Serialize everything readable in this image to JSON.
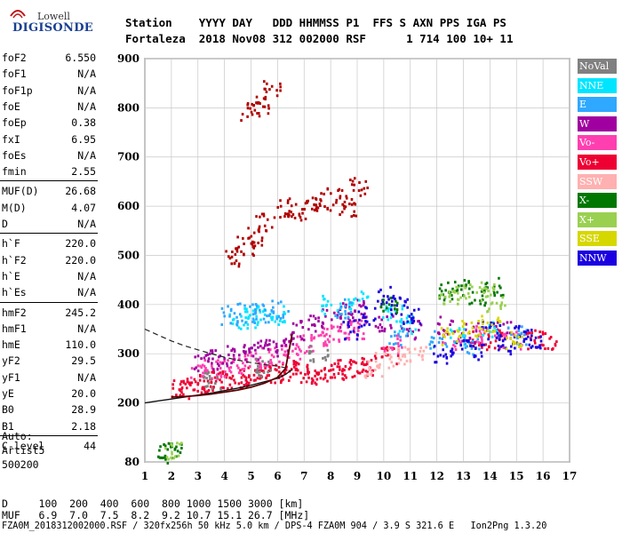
{
  "logo": {
    "line1": "Lowell",
    "line2": "DIGISONDE"
  },
  "header": {
    "row1": "Station    YYYY DAY   DDD HHMMSS P1  FFS S AXN PPS IGA PS",
    "row2": "Fortaleza  2018 Nov08 312 002000 RSF      1 714 100 10+ 11"
  },
  "params": [
    {
      "name": "foF2",
      "value": "6.550"
    },
    {
      "name": "foF1",
      "value": "N/A"
    },
    {
      "name": "foF1p",
      "value": "N/A"
    },
    {
      "name": "foE",
      "value": "N/A"
    },
    {
      "name": "foEp",
      "value": "0.38"
    },
    {
      "name": "fxI",
      "value": "6.95"
    },
    {
      "name": "foEs",
      "value": "N/A"
    },
    {
      "name": "fmin",
      "value": "2.55"
    },
    {
      "name": "MUF(D)",
      "value": "26.68"
    },
    {
      "name": "M(D)",
      "value": "4.07"
    },
    {
      "name": "D",
      "value": "N/A"
    },
    {
      "name": "h`F",
      "value": "220.0"
    },
    {
      "name": "h`F2",
      "value": "220.0"
    },
    {
      "name": "h`E",
      "value": "N/A"
    },
    {
      "name": "h`Es",
      "value": "N/A"
    },
    {
      "name": "hmF2",
      "value": "245.2"
    },
    {
      "name": "hmF1",
      "value": "N/A"
    },
    {
      "name": "hmE",
      "value": "110.0"
    },
    {
      "name": "yF2",
      "value": "29.5"
    },
    {
      "name": "yF1",
      "value": "N/A"
    },
    {
      "name": "yE",
      "value": "20.0"
    },
    {
      "name": "B0",
      "value": "28.9"
    },
    {
      "name": "B1",
      "value": "2.18"
    },
    {
      "name": "C-level",
      "value": "44"
    }
  ],
  "auto": {
    "line1": "Auto:",
    "line2": "Artist5",
    "line3": "500200"
  },
  "legend": [
    {
      "label": "NoVal",
      "color": "#808080"
    },
    {
      "label": "NNE",
      "color": "#00e5ff"
    },
    {
      "label": "E",
      "color": "#2fa8ff"
    },
    {
      "label": "W",
      "color": "#a000a0"
    },
    {
      "label": "Vo-",
      "color": "#ff3fb0"
    },
    {
      "label": "Vo+",
      "color": "#ee0033"
    },
    {
      "label": "SSW",
      "color": "#ffb0b0"
    },
    {
      "label": "X-",
      "color": "#007700"
    },
    {
      "label": "X+",
      "color": "#99d050"
    },
    {
      "label": "SSE",
      "color": "#d7d700"
    },
    {
      "label": "NNW",
      "color": "#1a00e0"
    }
  ],
  "footer": {
    "row1": "D     100  200  400  600  800 1000 1500 3000 [km]",
    "row2": "MUF   6.9  7.0  7.5  8.2  9.2 10.7 15.1 26.7 [MHz]",
    "row3": "FZA0M_2018312002000.RSF / 320fx256h 50 kHz 5.0 km / DPS-4 FZA0M 904 / 3.9 S 321.6 E   Ion2Png 1.3.20"
  },
  "chart_data": {
    "type": "scatter",
    "x_ticks": [
      1,
      2,
      3,
      4,
      5,
      6,
      7,
      8,
      9,
      10,
      11,
      12,
      13,
      14,
      15,
      16,
      17
    ],
    "y_ticks": [
      80,
      200,
      300,
      400,
      500,
      600,
      700,
      800,
      900
    ],
    "xlim": [
      1,
      17
    ],
    "ylim": [
      80,
      900
    ],
    "grid": true,
    "series": [
      {
        "name": "Vo+",
        "color": "#ee0033",
        "points": [
          [
            2.3,
            230
          ],
          [
            2.6,
            235
          ],
          [
            3.0,
            240
          ],
          [
            3.4,
            243
          ],
          [
            3.8,
            246
          ],
          [
            4.2,
            249
          ],
          [
            4.6,
            252
          ],
          [
            5.0,
            255
          ],
          [
            5.4,
            258
          ],
          [
            5.8,
            262
          ],
          [
            6.2,
            265
          ],
          [
            6.6,
            268
          ],
          [
            7.0,
            262
          ],
          [
            7.4,
            258
          ],
          [
            7.8,
            262
          ],
          [
            8.2,
            266
          ],
          [
            8.6,
            270
          ],
          [
            9.0,
            274
          ],
          [
            9.3,
            278
          ],
          [
            10.2,
            300
          ],
          [
            13.5,
            330
          ],
          [
            14.2,
            330
          ],
          [
            15.6,
            330
          ],
          [
            16.2,
            330
          ]
        ]
      },
      {
        "name": "Vo-",
        "color": "#ff3fb0",
        "points": [
          [
            3.0,
            265
          ],
          [
            3.5,
            270
          ],
          [
            4.0,
            275
          ],
          [
            4.5,
            280
          ],
          [
            5.0,
            288
          ],
          [
            5.5,
            295
          ],
          [
            6.0,
            300
          ],
          [
            6.5,
            310
          ],
          [
            7.0,
            320
          ],
          [
            7.5,
            330
          ],
          [
            8.0,
            340
          ],
          [
            8.5,
            345
          ],
          [
            9.0,
            350
          ],
          [
            10.3,
            320
          ],
          [
            12.5,
            330
          ],
          [
            13.8,
            340
          ],
          [
            14.8,
            330
          ]
        ]
      },
      {
        "name": "W",
        "color": "#a000a0",
        "points": [
          [
            3.2,
            285
          ],
          [
            3.8,
            290
          ],
          [
            4.4,
            300
          ],
          [
            5.0,
            310
          ],
          [
            5.6,
            315
          ],
          [
            6.2,
            320
          ],
          [
            6.8,
            350
          ],
          [
            7.4,
            360
          ],
          [
            8.0,
            375
          ],
          [
            8.6,
            385
          ],
          [
            9.0,
            395
          ],
          [
            10.0,
            360
          ],
          [
            11.0,
            350
          ],
          [
            12.3,
            360
          ],
          [
            13.2,
            345
          ],
          [
            14.5,
            350
          ]
        ]
      },
      {
        "name": "NNE",
        "color": "#00e5ff",
        "points": [
          [
            4.5,
            370
          ],
          [
            5.0,
            375
          ],
          [
            5.5,
            380
          ],
          [
            6.0,
            380
          ],
          [
            8.0,
            400
          ],
          [
            9.0,
            410
          ],
          [
            10.3,
            380
          ],
          [
            10.8,
            360
          ],
          [
            12.8,
            340
          ],
          [
            14.0,
            350
          ]
        ]
      },
      {
        "name": "E",
        "color": "#2fa8ff",
        "points": [
          [
            4.2,
            380
          ],
          [
            4.8,
            385
          ],
          [
            5.4,
            385
          ],
          [
            6.0,
            390
          ],
          [
            8.5,
            395
          ],
          [
            10.5,
            340
          ],
          [
            12.0,
            330
          ],
          [
            13.3,
            320
          ],
          [
            15.0,
            340
          ]
        ]
      },
      {
        "name": "NNW",
        "color": "#1a00e0",
        "points": [
          [
            8.8,
            350
          ],
          [
            9.3,
            380
          ],
          [
            10.0,
            420
          ],
          [
            10.5,
            400
          ],
          [
            11.0,
            380
          ],
          [
            12.2,
            300
          ],
          [
            12.8,
            320
          ],
          [
            13.4,
            310
          ],
          [
            14.0,
            350
          ],
          [
            14.6,
            320
          ],
          [
            15.2,
            340
          ],
          [
            15.6,
            330
          ]
        ]
      },
      {
        "name": "X-",
        "color": "#007700",
        "points": [
          [
            1.8,
            100
          ],
          [
            2.0,
            102
          ],
          [
            10.2,
            400
          ],
          [
            12.3,
            430
          ],
          [
            12.9,
            440
          ],
          [
            13.5,
            420
          ],
          [
            14.1,
            440
          ]
        ]
      },
      {
        "name": "X+",
        "color": "#99d050",
        "points": [
          [
            2.1,
            103
          ],
          [
            12.4,
            420
          ],
          [
            13.0,
            425
          ],
          [
            13.8,
            430
          ],
          [
            14.2,
            405
          ]
        ]
      },
      {
        "name": "SSE",
        "color": "#d7d700",
        "points": [
          [
            12.5,
            340
          ],
          [
            13.2,
            350
          ],
          [
            14.0,
            360
          ],
          [
            14.8,
            330
          ]
        ]
      },
      {
        "name": "SSW",
        "color": "#ffb0b0",
        "points": [
          [
            9.6,
            270
          ],
          [
            10.0,
            285
          ],
          [
            10.5,
            300
          ],
          [
            11.2,
            300
          ]
        ]
      },
      {
        "name": "NoVal",
        "color": "#808080",
        "points": [
          [
            3.5,
            250
          ],
          [
            5.5,
            275
          ],
          [
            7.5,
            300
          ]
        ]
      },
      {
        "name": "Trace X",
        "color": "#b00000",
        "points": [
          [
            4.3,
            500
          ],
          [
            4.7,
            520
          ],
          [
            5.1,
            540
          ],
          [
            5.5,
            570
          ],
          [
            6.3,
            600
          ],
          [
            6.7,
            590
          ],
          [
            7.3,
            600
          ],
          [
            7.7,
            610
          ],
          [
            8.2,
            620
          ],
          [
            8.6,
            600
          ],
          [
            9.0,
            640
          ],
          [
            4.9,
            795
          ],
          [
            5.3,
            805
          ],
          [
            5.7,
            840
          ]
        ]
      }
    ],
    "profile_curve": {
      "x": [
        1.0,
        1.5,
        2.0,
        2.5,
        3.0,
        3.5,
        4.0,
        4.5,
        5.0,
        5.5,
        6.0,
        6.3,
        6.55
      ],
      "y": [
        200,
        204,
        208,
        212,
        216,
        220,
        225,
        230,
        236,
        243,
        250,
        258,
        268
      ]
    },
    "ordinary_trace": {
      "x": [
        2.0,
        2.5,
        3.0,
        3.5,
        4.0,
        4.5,
        5.0,
        5.5,
        6.0,
        6.3,
        6.55
      ],
      "y": [
        212,
        213,
        215,
        218,
        222,
        226,
        232,
        240,
        252,
        270,
        340
      ]
    },
    "dashed_profile": {
      "x": [
        1.0,
        1.5,
        2.0,
        2.5,
        3.0,
        3.5,
        4.0,
        4.5,
        5.0,
        5.5,
        6.0,
        6.4
      ],
      "y": [
        350,
        338,
        326,
        316,
        308,
        300,
        293,
        287,
        282,
        278,
        275,
        270
      ]
    }
  }
}
